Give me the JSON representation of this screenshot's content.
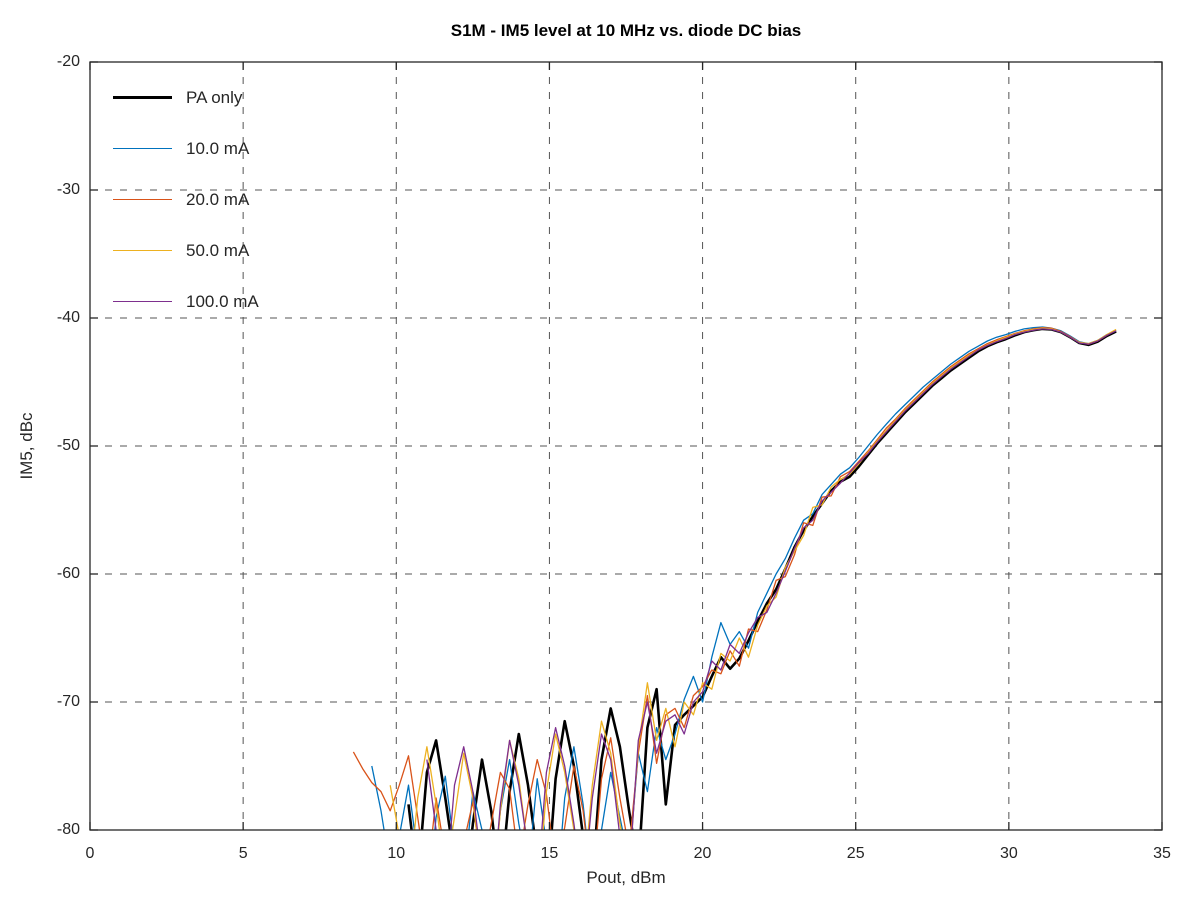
{
  "chart_data": {
    "type": "line",
    "title": "S1M - IM5 level at 10 MHz vs. diode DC bias",
    "xlabel": "Pout, dBm",
    "ylabel": "IM5, dBc",
    "xlim": [
      0,
      35
    ],
    "ylim": [
      -80,
      -20
    ],
    "xticks": [
      0,
      5,
      10,
      15,
      20,
      25,
      30,
      35
    ],
    "yticks": [
      -80,
      -70,
      -60,
      -50,
      -40,
      -30,
      -20
    ],
    "grid": "on",
    "grid_style": "dashed",
    "grid_color": "#545454",
    "axis_color": "#262626",
    "tick_label_color": "#262626",
    "background": "#ffffff",
    "legend_position": "top-left-inside",
    "series": [
      {
        "name": "PA only",
        "color": "#000000",
        "line_width": 2.6,
        "x_start": 10.4,
        "x_step": 0.3,
        "values": [
          -78.0,
          -84.0,
          -75.5,
          -73.0,
          -77.5,
          -82.5,
          -86.0,
          -79.5,
          -74.5,
          -78.5,
          -84.5,
          -77.0,
          -72.5,
          -76.5,
          -82.0,
          -85.5,
          -76.0,
          -71.5,
          -75.0,
          -80.5,
          -84.0,
          -74.5,
          -70.5,
          -73.5,
          -78.5,
          -83.0,
          -72.0,
          -69.0,
          -78.0,
          -71.8,
          -71.0,
          -70.3,
          -69.6,
          -68.0,
          -66.5,
          -67.4,
          -66.6,
          -65.2,
          -63.7,
          -62.3,
          -61.2,
          -59.6,
          -57.9,
          -56.6,
          -55.5,
          -54.5,
          -53.5,
          -52.8,
          -52.4,
          -51.6,
          -50.7,
          -49.8,
          -49.0,
          -48.2,
          -47.4,
          -46.7,
          -46.0,
          -45.3,
          -44.7,
          -44.1,
          -43.6,
          -43.1,
          -42.6,
          -42.2,
          -41.9,
          -41.65,
          -41.35,
          -41.1,
          -40.95,
          -40.85,
          -40.9,
          -41.1,
          -41.5,
          -41.95,
          -42.1,
          -41.85,
          -41.4,
          -41.05
        ]
      },
      {
        "name": "10.0 mA",
        "color": "#0072BD",
        "line_width": 1.3,
        "x_start": 9.2,
        "x_step": 0.3,
        "values": [
          -75.0,
          -78.5,
          -83.0,
          -80.5,
          -76.5,
          -82.0,
          -86.5,
          -79.0,
          -75.8,
          -81.5,
          -84.0,
          -77.0,
          -80.0,
          -85.5,
          -78.5,
          -74.5,
          -79.5,
          -83.5,
          -76.0,
          -81.0,
          -86.0,
          -77.5,
          -73.5,
          -78.0,
          -84.5,
          -80.0,
          -75.5,
          -79.0,
          -82.5,
          -74.0,
          -77.0,
          -72.0,
          -74.5,
          -72.5,
          -69.8,
          -68.0,
          -70.0,
          -66.5,
          -63.8,
          -65.5,
          -64.5,
          -65.8,
          -63.0,
          -61.5,
          -60.0,
          -58.8,
          -57.2,
          -55.8,
          -55.3,
          -53.8,
          -53.0,
          -52.2,
          -51.7,
          -50.9,
          -50.0,
          -49.1,
          -48.3,
          -47.5,
          -46.8,
          -46.1,
          -45.4,
          -44.8,
          -44.2,
          -43.6,
          -43.1,
          -42.6,
          -42.2,
          -41.8,
          -41.5,
          -41.3,
          -41.05,
          -40.85,
          -40.75,
          -40.7,
          -40.8,
          -41.0,
          -41.4,
          -41.85,
          -42.0,
          -41.75,
          -41.3,
          -41.0
        ]
      },
      {
        "name": "20.0 mA",
        "color": "#D95319",
        "line_width": 1.3,
        "x_start": 8.6,
        "x_step": 0.3,
        "values": [
          -73.9,
          -75.2,
          -76.3,
          -77.0,
          -78.5,
          -76.5,
          -74.2,
          -79.0,
          -84.0,
          -77.5,
          -82.0,
          -86.0,
          -81.0,
          -77.8,
          -83.5,
          -79.5,
          -75.5,
          -76.8,
          -82.5,
          -78.0,
          -74.5,
          -77.2,
          -83.0,
          -79.8,
          -75.0,
          -78.5,
          -84.5,
          -76.0,
          -72.8,
          -77.5,
          -81.5,
          -74.0,
          -69.5,
          -74.8,
          -71.0,
          -70.5,
          -72.0,
          -69.5,
          -68.8,
          -67.5,
          -67.8,
          -66.0,
          -67.2,
          -64.3,
          -64.5,
          -62.8,
          -60.5,
          -60.2,
          -58.5,
          -56.0,
          -56.2,
          -54.0,
          -53.9,
          -52.4,
          -52.0,
          -51.2,
          -50.4,
          -49.5,
          -48.6,
          -47.9,
          -47.1,
          -46.4,
          -45.7,
          -45.0,
          -44.4,
          -43.8,
          -43.3,
          -42.8,
          -42.4,
          -42.0,
          -41.7,
          -41.45,
          -41.2,
          -41.0,
          -40.85,
          -40.75,
          -40.8,
          -41.05,
          -41.45,
          -41.9,
          -42.05,
          -41.8,
          -41.35,
          -40.95
        ]
      },
      {
        "name": "50.0 mA",
        "color": "#EDB120",
        "line_width": 1.3,
        "x_start": 9.8,
        "x_step": 0.3,
        "values": [
          -76.5,
          -80.5,
          -85.0,
          -77.5,
          -73.5,
          -78.0,
          -83.5,
          -79.0,
          -74.0,
          -77.5,
          -84.0,
          -86.5,
          -78.5,
          -73.0,
          -76.0,
          -81.5,
          -85.5,
          -77.0,
          -72.5,
          -75.5,
          -80.0,
          -84.5,
          -76.5,
          -71.5,
          -74.0,
          -79.5,
          -83.0,
          -73.5,
          -68.5,
          -73.0,
          -70.5,
          -73.5,
          -70.0,
          -71.0,
          -68.5,
          -69.0,
          -66.2,
          -66.8,
          -65.0,
          -66.5,
          -64.0,
          -62.5,
          -61.8,
          -59.5,
          -58.2,
          -57.0,
          -54.8,
          -54.6,
          -53.2,
          -52.6,
          -52.2,
          -51.4,
          -50.5,
          -49.6,
          -48.8,
          -48.0,
          -47.2,
          -46.5,
          -45.8,
          -45.1,
          -44.5,
          -43.9,
          -43.4,
          -42.9,
          -42.5,
          -42.1,
          -41.8,
          -41.5,
          -41.25,
          -41.05,
          -40.9,
          -40.8,
          -40.85,
          -41.1,
          -41.5,
          -41.9,
          -42.0,
          -41.75,
          -41.3,
          -40.9
        ]
      },
      {
        "name": "100.0 mA",
        "color": "#7E2F8E",
        "line_width": 1.3,
        "x_start": 11.0,
        "x_step": 0.3,
        "values": [
          -74.5,
          -80.0,
          -85.0,
          -76.5,
          -73.5,
          -77.0,
          -83.0,
          -86.5,
          -78.0,
          -73.0,
          -76.5,
          -81.5,
          -84.5,
          -75.5,
          -72.0,
          -75.0,
          -79.5,
          -85.0,
          -77.5,
          -72.5,
          -74.5,
          -80.5,
          -83.5,
          -73.0,
          -70.0,
          -74.0,
          -71.5,
          -71.0,
          -72.5,
          -70.0,
          -69.2,
          -66.8,
          -67.5,
          -65.5,
          -66.2,
          -64.6,
          -63.4,
          -63.0,
          -61.5,
          -59.8,
          -58.0,
          -56.4,
          -55.8,
          -54.3,
          -53.6,
          -52.9,
          -52.1,
          -51.3,
          -50.6,
          -49.7,
          -48.9,
          -48.1,
          -47.3,
          -46.6,
          -45.9,
          -45.2,
          -44.6,
          -44.0,
          -43.5,
          -43.0,
          -42.5,
          -42.15,
          -41.85,
          -41.6,
          -41.3,
          -41.1,
          -40.95,
          -40.85,
          -40.9,
          -41.1,
          -41.5,
          -41.95,
          -42.05,
          -41.8,
          -41.35,
          -41.0
        ]
      }
    ]
  }
}
